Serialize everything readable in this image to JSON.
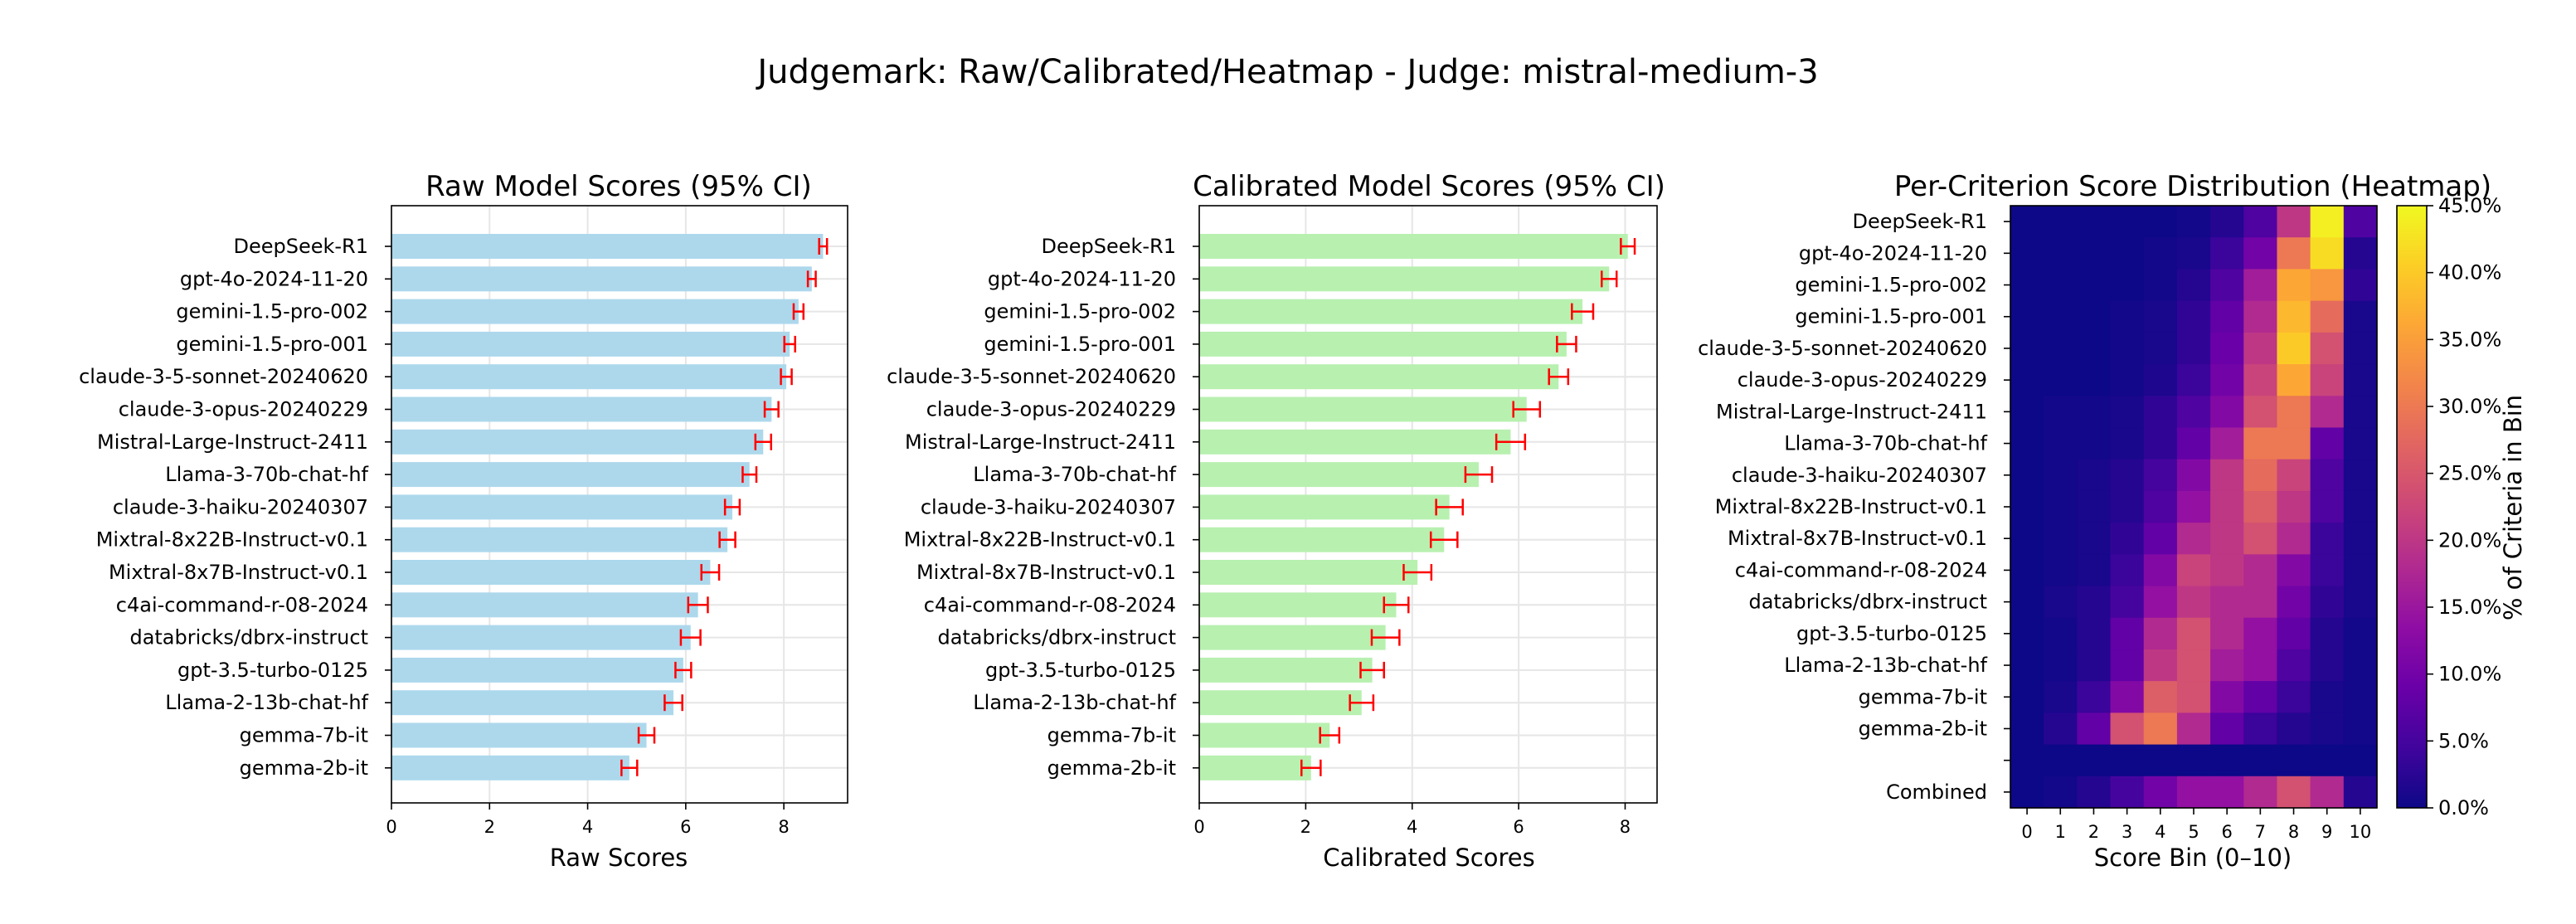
{
  "suptitle": "Judgemark: Raw/Calibrated/Heatmap - Judge: mistral-medium-3",
  "chart_data": [
    {
      "type": "bar",
      "orientation": "horizontal",
      "title": "Raw Model Scores (95% CI)",
      "xlabel": "Raw Scores",
      "ylabel": "",
      "xlim": [
        0,
        9.3
      ],
      "xticks": [
        0,
        2,
        4,
        6,
        8
      ],
      "grid": true,
      "bar_color": "#add8ec",
      "error_color": "#ff0000",
      "categories": [
        "DeepSeek-R1",
        "gpt-4o-2024-11-20",
        "gemini-1.5-pro-002",
        "gemini-1.5-pro-001",
        "claude-3-5-sonnet-20240620",
        "claude-3-opus-20240229",
        "Mistral-Large-Instruct-2411",
        "Llama-3-70b-chat-hf",
        "claude-3-haiku-20240307",
        "Mixtral-8x22B-Instruct-v0.1",
        "Mixtral-8x7B-Instruct-v0.1",
        "c4ai-command-r-08-2024",
        "databricks/dbrx-instruct",
        "gpt-3.5-turbo-0125",
        "Llama-2-13b-chat-hf",
        "gemma-7b-it",
        "gemma-2b-it"
      ],
      "values": [
        8.8,
        8.57,
        8.3,
        8.12,
        8.05,
        7.75,
        7.58,
        7.3,
        6.95,
        6.85,
        6.5,
        6.25,
        6.1,
        5.95,
        5.75,
        5.2,
        4.85
      ],
      "ci_low": [
        8.72,
        8.49,
        8.2,
        8.01,
        7.94,
        7.61,
        7.42,
        7.16,
        6.8,
        6.69,
        6.32,
        6.05,
        5.9,
        5.79,
        5.57,
        5.04,
        4.69
      ],
      "ci_high": [
        8.88,
        8.65,
        8.4,
        8.23,
        8.16,
        7.89,
        7.74,
        7.44,
        7.1,
        7.01,
        6.68,
        6.45,
        6.3,
        6.11,
        5.93,
        5.36,
        5.01
      ]
    },
    {
      "type": "bar",
      "orientation": "horizontal",
      "title": "Calibrated Model Scores (95% CI)",
      "xlabel": "Calibrated Scores",
      "ylabel": "",
      "xlim": [
        0,
        8.6
      ],
      "xticks": [
        0,
        2,
        4,
        6,
        8
      ],
      "grid": true,
      "bar_color": "#b8f0b0",
      "error_color": "#ff0000",
      "categories": [
        "DeepSeek-R1",
        "gpt-4o-2024-11-20",
        "gemini-1.5-pro-002",
        "gemini-1.5-pro-001",
        "claude-3-5-sonnet-20240620",
        "claude-3-opus-20240229",
        "Mistral-Large-Instruct-2411",
        "Llama-3-70b-chat-hf",
        "claude-3-haiku-20240307",
        "Mixtral-8x22B-Instruct-v0.1",
        "Mixtral-8x7B-Instruct-v0.1",
        "c4ai-command-r-08-2024",
        "databricks/dbrx-instruct",
        "gpt-3.5-turbo-0125",
        "Llama-2-13b-chat-hf",
        "gemma-7b-it",
        "gemma-2b-it"
      ],
      "values": [
        8.05,
        7.7,
        7.2,
        6.9,
        6.75,
        6.15,
        5.85,
        5.25,
        4.7,
        4.6,
        4.1,
        3.7,
        3.5,
        3.25,
        3.05,
        2.45,
        2.1
      ],
      "ci_low": [
        7.92,
        7.56,
        7.0,
        6.72,
        6.57,
        5.9,
        5.58,
        5.0,
        4.45,
        4.35,
        3.84,
        3.47,
        3.24,
        3.03,
        2.83,
        2.27,
        1.92
      ],
      "ci_high": [
        8.18,
        7.84,
        7.4,
        7.08,
        6.93,
        6.4,
        6.12,
        5.5,
        4.95,
        4.85,
        4.36,
        3.93,
        3.76,
        3.47,
        3.27,
        2.63,
        2.28
      ]
    },
    {
      "type": "heatmap",
      "title": "Per-Criterion Score Distribution (Heatmap)",
      "xlabel": "Score Bin (0–10)",
      "ylabel": "",
      "colorbar_label": "% of Criteria in Bin",
      "colormap": "plasma",
      "clim": [
        0,
        45
      ],
      "colorbar_ticks": [
        "0.0%",
        "5.0%",
        "10.0%",
        "15.0%",
        "20.0%",
        "25.0%",
        "30.0%",
        "35.0%",
        "40.0%",
        "45.0%"
      ],
      "x": [
        "0",
        "1",
        "2",
        "3",
        "4",
        "5",
        "6",
        "7",
        "8",
        "9",
        "10"
      ],
      "rows": [
        "DeepSeek-R1",
        "gpt-4o-2024-11-20",
        "gemini-1.5-pro-002",
        "gemini-1.5-pro-001",
        "claude-3-5-sonnet-20240620",
        "claude-3-opus-20240229",
        "Mistral-Large-Instruct-2411",
        "Llama-3-70b-chat-hf",
        "claude-3-haiku-20240307",
        "Mixtral-8x22B-Instruct-v0.1",
        "Mixtral-8x7B-Instruct-v0.1",
        "c4ai-command-r-08-2024",
        "databricks/dbrx-instruct",
        "gpt-3.5-turbo-0125",
        "Llama-2-13b-chat-hf",
        "gemma-7b-it",
        "gemma-2b-it",
        "",
        "Combined"
      ],
      "values": [
        [
          0,
          0,
          0,
          0,
          0,
          0.5,
          2,
          6,
          20,
          44,
          6
        ],
        [
          0,
          0,
          0,
          0,
          0.5,
          1,
          4,
          10,
          30,
          42,
          2
        ],
        [
          0,
          0,
          0,
          0,
          0.5,
          2,
          6,
          16,
          36,
          34,
          3
        ],
        [
          0,
          0,
          0,
          0.5,
          1,
          3,
          8,
          18,
          38,
          28,
          1
        ],
        [
          0,
          0,
          0,
          0.5,
          1,
          3,
          9,
          20,
          40,
          24,
          1
        ],
        [
          0,
          0,
          0,
          0.5,
          1.5,
          4,
          10,
          22,
          36,
          22,
          1
        ],
        [
          0,
          0.5,
          0.5,
          1,
          3,
          6,
          12,
          24,
          30,
          18,
          1
        ],
        [
          0,
          0.5,
          0.5,
          1,
          3,
          8,
          16,
          30,
          30,
          8,
          1
        ],
        [
          0,
          0.5,
          1,
          2,
          5,
          12,
          20,
          28,
          22,
          6,
          1
        ],
        [
          0,
          0.5,
          1,
          2,
          6,
          14,
          20,
          26,
          20,
          6,
          1
        ],
        [
          0,
          0.5,
          1,
          3,
          8,
          18,
          20,
          24,
          18,
          4,
          1
        ],
        [
          0,
          0.5,
          1,
          4,
          12,
          22,
          20,
          18,
          12,
          4,
          1
        ],
        [
          0,
          1,
          2,
          5,
          14,
          20,
          18,
          18,
          10,
          3,
          1
        ],
        [
          0,
          0.5,
          2,
          8,
          18,
          24,
          18,
          14,
          8,
          2,
          0.5
        ],
        [
          0,
          0.5,
          2,
          8,
          20,
          24,
          16,
          14,
          6,
          2,
          0.5
        ],
        [
          0,
          1,
          4,
          12,
          26,
          24,
          12,
          8,
          4,
          1,
          0.5
        ],
        [
          0,
          2,
          8,
          24,
          30,
          18,
          8,
          4,
          2,
          1,
          0.5
        ],
        [
          0,
          0,
          0,
          0,
          0,
          0,
          0,
          0,
          0,
          0,
          0
        ],
        [
          0,
          0.5,
          2,
          5,
          10,
          14,
          14,
          18,
          24,
          18,
          2
        ]
      ]
    }
  ]
}
